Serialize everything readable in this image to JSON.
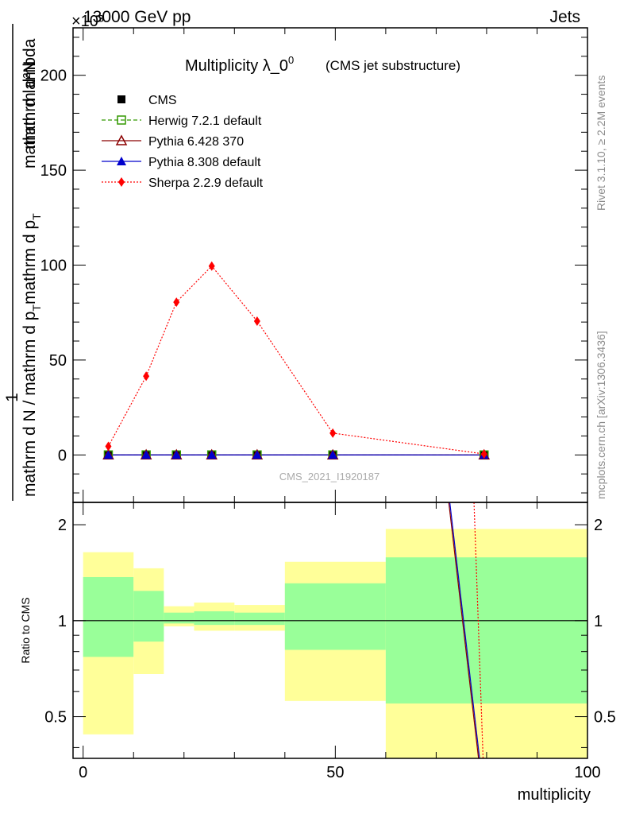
{
  "header": {
    "left": "13000 GeV pp",
    "right": "Jets",
    "exponent": "×10³"
  },
  "side_labels": {
    "rivet": "Rivet 3.1.10, ≥ 2.2M events",
    "mcplots": "mcplots.cern.ch [arXiv:1306.3436]"
  },
  "watermark": "CMS_2021_I1920187",
  "colors": {
    "herwig": "#339900",
    "pythia6": "#8b0000",
    "pythia8": "#0000cc",
    "sherpa": "#ff0000",
    "band_inner": "#99ff99",
    "band_outer": "#ffff99"
  },
  "chart_data": [
    {
      "type": "line",
      "title_main": "Multiplicity λ_0",
      "title_sup": "0",
      "title_sub": "(CMS jet substructure)",
      "ylabel_top": "1",
      "ylabel_num": "mathrm d²N",
      "ylabel_den_line1": "mathrm d N / mathrm d p",
      "ylabel_den_line2": "mathrm d p",
      "ylabel_den_tail": "mathrm d lambda",
      "ylabel_sub": "T",
      "xlim": [
        -2,
        100
      ],
      "ylim": [
        -25,
        225
      ],
      "y_scale_note": "values in units of 10^3",
      "x": [
        5,
        12.5,
        18.5,
        25.5,
        34.5,
        49.5,
        79.5
      ],
      "series": [
        {
          "name": "CMS",
          "key": "cms",
          "marker": "square-filled",
          "values": [
            0.02,
            0.03,
            0.02,
            0.03,
            0.02,
            0.01,
            0.0
          ]
        },
        {
          "name": "Herwig 7.2.1 default",
          "key": "herwig",
          "marker": "square-open",
          "dash": "dashed",
          "values": [
            0.02,
            0.03,
            0.02,
            0.03,
            0.02,
            0.01,
            0.0
          ]
        },
        {
          "name": "Pythia 6.428 370",
          "key": "pythia6",
          "marker": "triangle-open",
          "dash": "solid",
          "values": [
            0.02,
            0.03,
            0.02,
            0.03,
            0.02,
            0.01,
            0.0
          ]
        },
        {
          "name": "Pythia 8.308 default",
          "key": "pythia8",
          "marker": "triangle-filled",
          "dash": "solid",
          "values": [
            0.02,
            0.03,
            0.02,
            0.03,
            0.02,
            0.01,
            0.0
          ]
        },
        {
          "name": "Sherpa 2.2.9 default",
          "key": "sherpa",
          "marker": "diamond-filled",
          "dash": "dotted",
          "values": [
            4.5,
            41.5,
            80.5,
            99.5,
            70.5,
            11.5,
            0.5
          ]
        }
      ],
      "yticks": [
        0,
        50,
        100,
        150,
        200
      ]
    },
    {
      "type": "area",
      "ylabel": "Ratio to CMS",
      "xlabel": "multiplicity",
      "xlim": [
        -2,
        100
      ],
      "ylim": [
        0.37,
        2.35
      ],
      "xticks": [
        0,
        50,
        100
      ],
      "yticks": [
        0.5,
        1,
        2
      ],
      "bins": [
        {
          "lo": 0,
          "hi": 10,
          "inner": [
            0.77,
            1.37
          ],
          "outer": [
            0.44,
            1.64
          ]
        },
        {
          "lo": 10,
          "hi": 16,
          "inner": [
            0.86,
            1.24
          ],
          "outer": [
            0.68,
            1.46
          ]
        },
        {
          "lo": 16,
          "hi": 22,
          "inner": [
            0.98,
            1.06
          ],
          "outer": [
            0.96,
            1.11
          ]
        },
        {
          "lo": 22,
          "hi": 30,
          "inner": [
            0.97,
            1.07
          ],
          "outer": [
            0.93,
            1.14
          ]
        },
        {
          "lo": 30,
          "hi": 40,
          "inner": [
            0.97,
            1.06
          ],
          "outer": [
            0.93,
            1.12
          ]
        },
        {
          "lo": 40,
          "hi": 60,
          "inner": [
            0.81,
            1.31
          ],
          "outer": [
            0.56,
            1.53
          ]
        },
        {
          "lo": 60,
          "hi": 100,
          "inner": [
            0.55,
            1.58
          ],
          "outer": [
            0.37,
            1.94
          ]
        }
      ],
      "ratio_lines": [
        {
          "key": "pythia8",
          "x": [
            72.7,
            78.6
          ],
          "y": [
            2.35,
            0.37
          ]
        },
        {
          "key": "pythia6",
          "x": [
            72.5,
            78.4
          ],
          "y": [
            2.35,
            0.37
          ]
        },
        {
          "key": "sherpa",
          "x": [
            77.5,
            79.3
          ],
          "y": [
            2.35,
            0.37
          ]
        }
      ]
    }
  ]
}
